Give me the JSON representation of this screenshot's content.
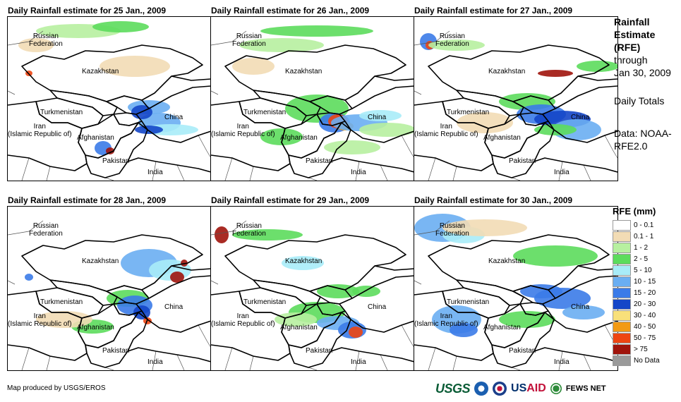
{
  "panels": [
    {
      "title": "Daily Rainfall estimate for 25 Jan., 2009"
    },
    {
      "title": "Daily Rainfall estimate for 26 Jan., 2009"
    },
    {
      "title": "Daily Rainfall estimate for 27 Jan., 2009"
    },
    {
      "title": "Daily Rainfall estimate for 28 Jan., 2009"
    },
    {
      "title": "Daily Rainfall estimate for 29 Jan., 2009"
    },
    {
      "title": "Daily Rainfall estimate for 30 Jan., 2009"
    }
  ],
  "map_labels": {
    "russia": "Russian\nFederation",
    "kazakhstan": "Kazakhstan",
    "turkmenistan": "Turkmenistan",
    "iran": "Iran\n(Islamic Republic of)",
    "afghanistan": "Afghanistan",
    "pakistan": "Pakistan",
    "china": "China",
    "india": "India"
  },
  "side": {
    "title": "Rainfall Estimate (RFE)",
    "through": "through",
    "date": "Jan 30, 2009",
    "daily": "Daily Totals",
    "data": "Data: NOAA-RFE2.0"
  },
  "legend": {
    "title": "RFE (mm)",
    "items": [
      {
        "label": "0 - 0.1",
        "color": "#ffffff"
      },
      {
        "label": "0.1 - 1",
        "color": "#f2dcb5"
      },
      {
        "label": "1 - 2",
        "color": "#b7f0a0"
      },
      {
        "label": "2 - 5",
        "color": "#5cdc5c"
      },
      {
        "label": "5 - 10",
        "color": "#a8ecf8"
      },
      {
        "label": "10 - 15",
        "color": "#6aaef2"
      },
      {
        "label": "15 - 20",
        "color": "#3b7be8"
      },
      {
        "label": "20 - 30",
        "color": "#1446c8"
      },
      {
        "label": "30 - 40",
        "color": "#f8e07a"
      },
      {
        "label": "40 - 50",
        "color": "#f29a14"
      },
      {
        "label": "50 - 75",
        "color": "#ee4512"
      },
      {
        "label": "> 75",
        "color": "#a0140c"
      },
      {
        "label": "No Data",
        "color": "#9a9a9a"
      }
    ]
  },
  "footer": "Map produced by USGS/EROS",
  "logos": {
    "usgs": "USGS",
    "usaid_a": "US",
    "usaid_b": "AID",
    "fews": "FEWS NET"
  }
}
